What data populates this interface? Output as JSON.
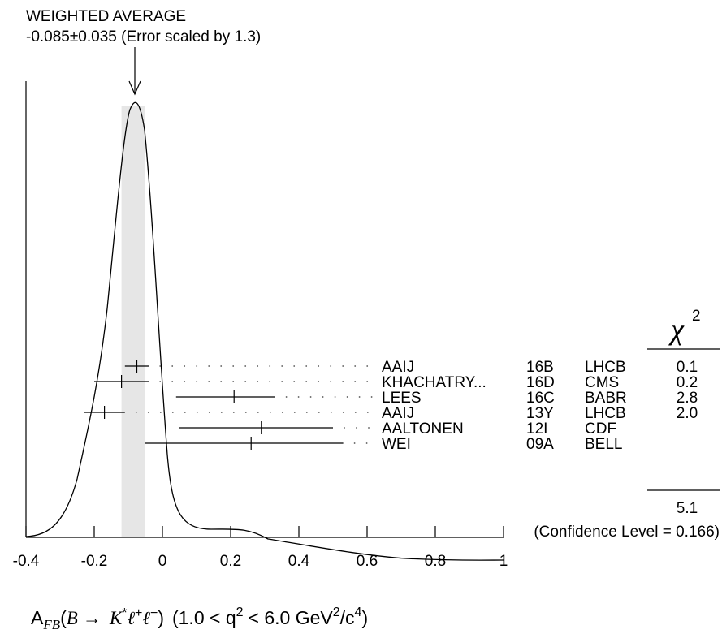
{
  "header": {
    "line1": "WEIGHTED AVERAGE",
    "line2": "-0.085±0.035 (Error scaled by 1.3)"
  },
  "chart_data": {
    "type": "ideogram",
    "weighted_average": {
      "value": -0.085,
      "error": 0.035,
      "error_scale": 1.3
    },
    "xlim": [
      -0.4,
      1.0
    ],
    "x_ticks": [
      "-0.4",
      "-0.2",
      "0",
      "0.2",
      "0.4",
      "0.6",
      "0.8",
      "1"
    ],
    "x_tick_values": [
      -0.4,
      -0.2,
      0,
      0.2,
      0.4,
      0.6,
      0.8,
      1.0
    ],
    "xlabel_parts": {
      "a": "A",
      "fb": "FB",
      "paren_open": "(",
      "b": "B",
      "arrow": "→",
      "kstar": "K",
      "star": "*",
      "l": "ℓ",
      "plus": "+",
      "minus": "−",
      "paren_close": ")",
      "range": "(1.0 < q",
      "sq": "2",
      "range2": "< 6.0 GeV",
      "sq2": "2",
      "slash": "/c",
      "four": "4",
      "close": ")"
    },
    "chi2_header": "χ",
    "chi2_power": "2",
    "measurements": [
      {
        "author": "AAIJ",
        "year": "16B",
        "experiment": "LHCB",
        "chi2": "0.1",
        "value": -0.075,
        "err_lo": 0.035,
        "err_hi": 0.035
      },
      {
        "author": "KHACHATRY...",
        "year": "16D",
        "experiment": "CMS",
        "chi2": "0.2",
        "value": -0.12,
        "err_lo": 0.08,
        "err_hi": 0.08
      },
      {
        "author": "LEES",
        "year": "16C",
        "experiment": "BABR",
        "chi2": "2.8",
        "value": 0.21,
        "err_lo": 0.17,
        "err_hi": 0.12
      },
      {
        "author": "AAIJ",
        "year": "13Y",
        "experiment": "LHCB",
        "chi2": "2.0",
        "value": -0.17,
        "err_lo": 0.06,
        "err_hi": 0.06
      },
      {
        "author": "AALTONEN",
        "year": "12I",
        "experiment": "CDF",
        "chi2": "",
        "value": 0.29,
        "err_lo": 0.24,
        "err_hi": 0.21
      },
      {
        "author": "WEI",
        "year": "09A",
        "experiment": "BELL",
        "chi2": "",
        "value": 0.26,
        "err_lo": 0.31,
        "err_hi": 0.27
      }
    ],
    "chi2_total": "5.1",
    "confidence_level": "(Confidence Level = 0.166)"
  }
}
